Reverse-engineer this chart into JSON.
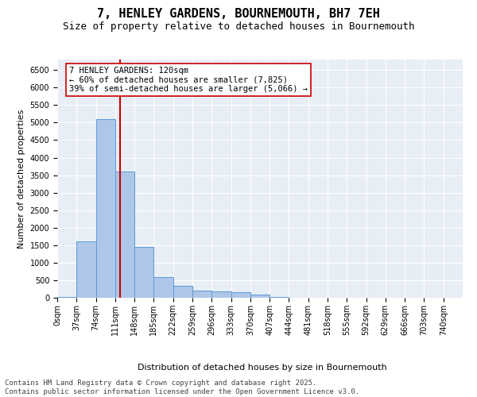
{
  "title_line1": "7, HENLEY GARDENS, BOURNEMOUTH, BH7 7EH",
  "title_line2": "Size of property relative to detached houses in Bournemouth",
  "xlabel": "Distribution of detached houses by size in Bournemouth",
  "ylabel": "Number of detached properties",
  "bin_edges": [
    0,
    37,
    74,
    111,
    148,
    185,
    222,
    259,
    296,
    333,
    370,
    407,
    444,
    481,
    518,
    555,
    592,
    629,
    666,
    703,
    740,
    777
  ],
  "bar_heights": [
    30,
    1600,
    5100,
    3600,
    1450,
    600,
    350,
    200,
    175,
    150,
    100,
    30,
    10,
    5,
    3,
    2,
    1,
    1,
    0,
    0,
    0
  ],
  "bar_color": "#aec6e8",
  "bar_edge_color": "#5b9bd5",
  "property_size": 120,
  "vline_color": "#cc0000",
  "annotation_text": "7 HENLEY GARDENS: 120sqm\n← 60% of detached houses are smaller (7,825)\n39% of semi-detached houses are larger (5,066) →",
  "annotation_box_color": "#ffffff",
  "annotation_edge_color": "#cc0000",
  "ylim": [
    0,
    6800
  ],
  "yticks": [
    0,
    500,
    1000,
    1500,
    2000,
    2500,
    3000,
    3500,
    4000,
    4500,
    5000,
    5500,
    6000,
    6500
  ],
  "bg_color": "#e8eef5",
  "footer_text": "Contains HM Land Registry data © Crown copyright and database right 2025.\nContains public sector information licensed under the Open Government Licence v3.0.",
  "title_fontsize": 11,
  "subtitle_fontsize": 9,
  "axis_label_fontsize": 8,
  "tick_fontsize": 7,
  "annotation_fontsize": 7.5,
  "footer_fontsize": 6.5
}
